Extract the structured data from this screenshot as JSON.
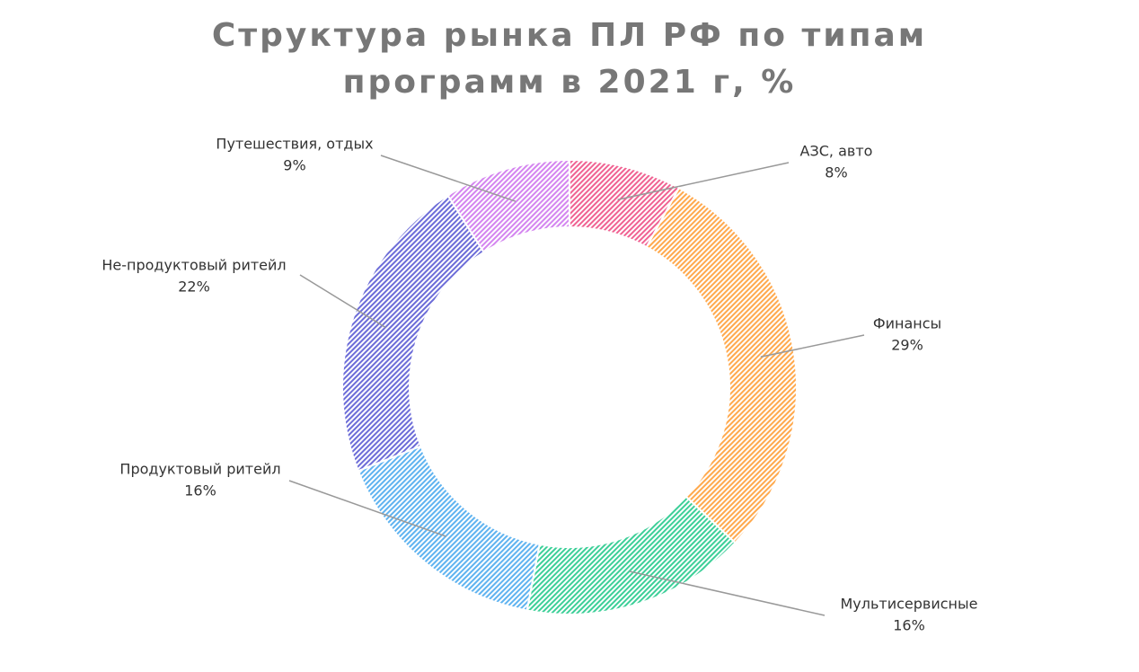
{
  "chart_data": {
    "type": "donut",
    "title": "Структура рынка ПЛ РФ по типам программ в 2021 г, %",
    "categories": [
      "АЗС, авто",
      "Финансы",
      "Мультисервисные",
      "Продуктовый ритейл",
      "Не-продуктовый ритейл",
      "Путешествия, отдых"
    ],
    "values": [
      8,
      29,
      16,
      16,
      22,
      9
    ],
    "value_labels": [
      "8%",
      "29%",
      "16%",
      "16%",
      "22%",
      "9%"
    ],
    "colors": [
      "#f06292",
      "#ffa94d",
      "#3ccf98",
      "#5fb3f0",
      "#6c6cd8",
      "#d485f0"
    ]
  }
}
